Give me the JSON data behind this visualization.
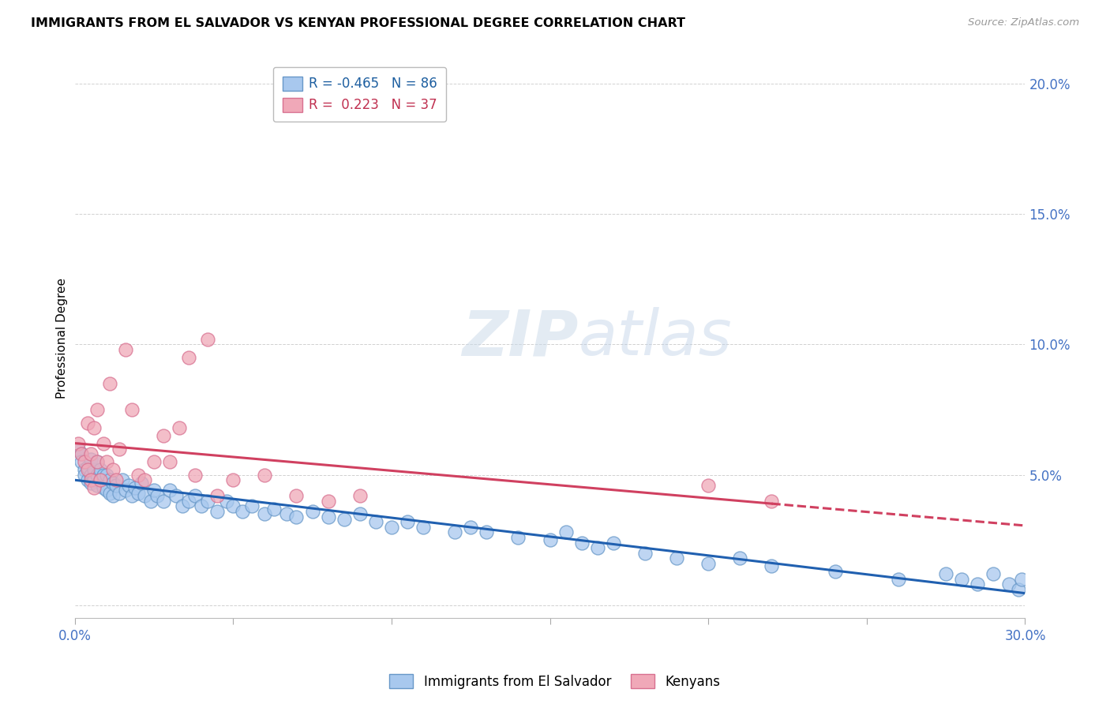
{
  "title": "IMMIGRANTS FROM EL SALVADOR VS KENYAN PROFESSIONAL DEGREE CORRELATION CHART",
  "source": "Source: ZipAtlas.com",
  "ylabel": "Professional Degree",
  "xlim": [
    0.0,
    0.3
  ],
  "ylim": [
    -0.005,
    0.21
  ],
  "yticks": [
    0.0,
    0.05,
    0.1,
    0.15,
    0.2
  ],
  "ytick_labels": [
    "",
    "5.0%",
    "10.0%",
    "15.0%",
    "20.0%"
  ],
  "xticks": [
    0.0,
    0.05,
    0.1,
    0.15,
    0.2,
    0.25,
    0.3
  ],
  "legend_blue_r": "-0.465",
  "legend_blue_n": "86",
  "legend_pink_r": "0.223",
  "legend_pink_n": "37",
  "legend_blue_label": "Immigrants from El Salvador",
  "legend_pink_label": "Kenyans",
  "blue_color": "#A8C8EE",
  "pink_color": "#F0A8B8",
  "blue_edge_color": "#6898C8",
  "pink_edge_color": "#D87090",
  "blue_line_color": "#2060B0",
  "pink_line_color": "#D04060",
  "watermark_zip": "ZIP",
  "watermark_atlas": "atlas",
  "blue_scatter_x": [
    0.001,
    0.002,
    0.002,
    0.003,
    0.003,
    0.004,
    0.004,
    0.005,
    0.005,
    0.005,
    0.006,
    0.006,
    0.007,
    0.007,
    0.007,
    0.008,
    0.008,
    0.009,
    0.009,
    0.01,
    0.01,
    0.011,
    0.011,
    0.012,
    0.012,
    0.013,
    0.014,
    0.015,
    0.016,
    0.017,
    0.018,
    0.019,
    0.02,
    0.021,
    0.022,
    0.024,
    0.025,
    0.026,
    0.028,
    0.03,
    0.032,
    0.034,
    0.036,
    0.038,
    0.04,
    0.042,
    0.045,
    0.048,
    0.05,
    0.053,
    0.056,
    0.06,
    0.063,
    0.067,
    0.07,
    0.075,
    0.08,
    0.085,
    0.09,
    0.095,
    0.1,
    0.105,
    0.11,
    0.12,
    0.125,
    0.13,
    0.14,
    0.15,
    0.155,
    0.16,
    0.165,
    0.17,
    0.18,
    0.19,
    0.2,
    0.21,
    0.22,
    0.24,
    0.26,
    0.275,
    0.28,
    0.285,
    0.29,
    0.295,
    0.298,
    0.299
  ],
  "blue_scatter_y": [
    0.06,
    0.058,
    0.055,
    0.052,
    0.05,
    0.048,
    0.053,
    0.056,
    0.05,
    0.047,
    0.052,
    0.048,
    0.055,
    0.05,
    0.046,
    0.052,
    0.048,
    0.05,
    0.045,
    0.05,
    0.044,
    0.048,
    0.043,
    0.047,
    0.042,
    0.046,
    0.043,
    0.048,
    0.044,
    0.046,
    0.042,
    0.045,
    0.043,
    0.047,
    0.042,
    0.04,
    0.044,
    0.042,
    0.04,
    0.044,
    0.042,
    0.038,
    0.04,
    0.042,
    0.038,
    0.04,
    0.036,
    0.04,
    0.038,
    0.036,
    0.038,
    0.035,
    0.037,
    0.035,
    0.034,
    0.036,
    0.034,
    0.033,
    0.035,
    0.032,
    0.03,
    0.032,
    0.03,
    0.028,
    0.03,
    0.028,
    0.026,
    0.025,
    0.028,
    0.024,
    0.022,
    0.024,
    0.02,
    0.018,
    0.016,
    0.018,
    0.015,
    0.013,
    0.01,
    0.012,
    0.01,
    0.008,
    0.012,
    0.008,
    0.006,
    0.01
  ],
  "pink_scatter_x": [
    0.001,
    0.002,
    0.003,
    0.004,
    0.004,
    0.005,
    0.005,
    0.006,
    0.006,
    0.007,
    0.007,
    0.008,
    0.009,
    0.01,
    0.011,
    0.012,
    0.013,
    0.014,
    0.016,
    0.018,
    0.02,
    0.022,
    0.025,
    0.028,
    0.03,
    0.033,
    0.036,
    0.038,
    0.042,
    0.045,
    0.05,
    0.06,
    0.07,
    0.08,
    0.09,
    0.2,
    0.22
  ],
  "pink_scatter_y": [
    0.062,
    0.058,
    0.055,
    0.052,
    0.07,
    0.048,
    0.058,
    0.068,
    0.045,
    0.055,
    0.075,
    0.048,
    0.062,
    0.055,
    0.085,
    0.052,
    0.048,
    0.06,
    0.098,
    0.075,
    0.05,
    0.048,
    0.055,
    0.065,
    0.055,
    0.068,
    0.095,
    0.05,
    0.102,
    0.042,
    0.048,
    0.05,
    0.042,
    0.04,
    0.042,
    0.046,
    0.04
  ]
}
